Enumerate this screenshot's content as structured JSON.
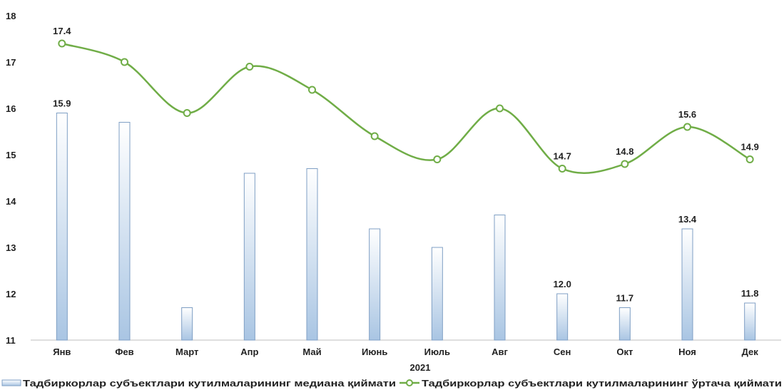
{
  "chart_data": {
    "type": "bar",
    "categories": [
      "Янв",
      "Фев",
      "Март",
      "Апр",
      "Май",
      "Июнь",
      "Июль",
      "Авг",
      "Сен",
      "Окт",
      "Ноя",
      "Дек"
    ],
    "xlabel": "2021",
    "ylim": [
      11,
      18
    ],
    "yticks": [
      11,
      12,
      13,
      14,
      15,
      16,
      17,
      18
    ],
    "grid": false,
    "legend_position": "bottom",
    "series": [
      {
        "name": "Тадбиркорлар субъектлари кутилмаларининг медиана қиймати",
        "type": "bar",
        "values": [
          15.9,
          15.7,
          11.7,
          14.6,
          14.7,
          13.4,
          13.0,
          13.7,
          12.0,
          11.7,
          13.4,
          11.8
        ],
        "labels": [
          "15.9",
          "",
          "",
          "",
          "",
          "",
          "",
          "",
          "12.0",
          "11.7",
          "13.4",
          "11.8"
        ]
      },
      {
        "name": "Тадбиркорлар субъектлари кутилмаларининг ўртача қиймати",
        "type": "line",
        "smooth": true,
        "values": [
          17.4,
          17.0,
          15.9,
          16.9,
          16.4,
          15.4,
          14.9,
          16.0,
          14.7,
          14.8,
          15.6,
          14.9
        ],
        "labels": [
          "17.4",
          "",
          "",
          "",
          "",
          "",
          "",
          "",
          "14.7",
          "14.8",
          "15.6",
          "14.9"
        ]
      }
    ]
  },
  "colors": {
    "bar_fill_top": "#ffffff",
    "bar_fill_bottom": "#a9c5e3",
    "bar_stroke": "#7f9fc4",
    "line": "#70ad47",
    "marker_fill": "#ffffff",
    "axis": "#bfbfbf"
  }
}
